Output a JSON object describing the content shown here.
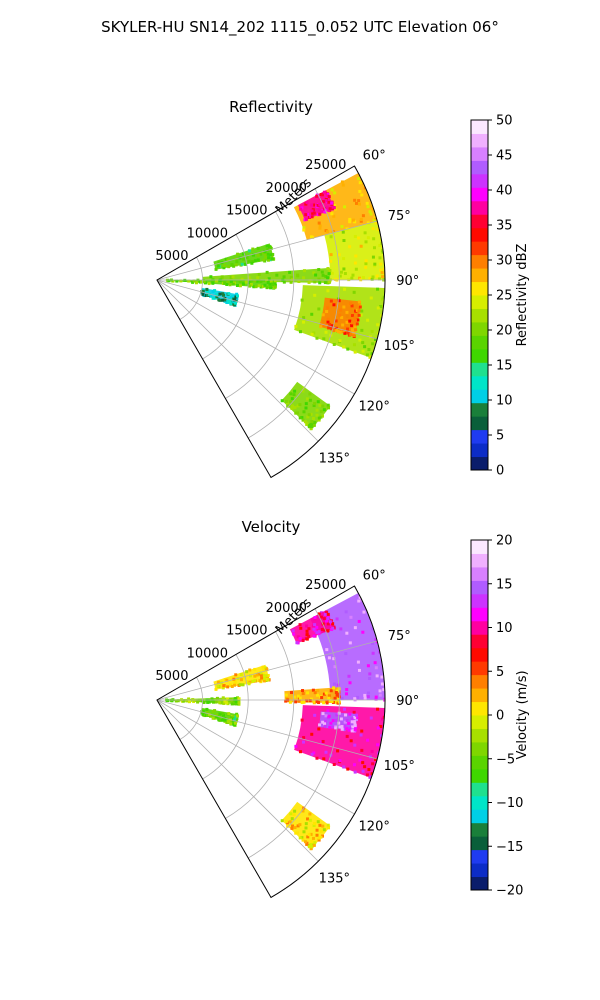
{
  "figure": {
    "suptitle": "SKYLER-HU  SN14_202  1115_0.052 UTC Elevation 06°"
  },
  "chart_data": [
    {
      "type": "heatmap",
      "subtype": "polar-sector-ppi",
      "title": "Reflectivity",
      "radial_label": "Meters",
      "radial_ticks": [
        "5000",
        "10000",
        "15000",
        "20000",
        "25000"
      ],
      "radial_tick_values": [
        5000,
        10000,
        15000,
        20000,
        25000
      ],
      "r_max": 25000,
      "angle_ticks": [
        "60°",
        "75°",
        "90°",
        "105°",
        "120°",
        "135°"
      ],
      "angle_tick_values": [
        60,
        75,
        90,
        105,
        120,
        135
      ],
      "theta_range": [
        60,
        150
      ],
      "grid": true,
      "colorbar": {
        "label": "Reflectivity dBZ",
        "ticks": [
          "0",
          "5",
          "10",
          "15",
          "20",
          "25",
          "30",
          "35",
          "40",
          "45",
          "50"
        ],
        "range": [
          0,
          50
        ],
        "colors": [
          "#0a1d6b",
          "#0c2cc7",
          "#1f3bf0",
          "#0a5f3a",
          "#1a7f3a",
          "#00cfe6",
          "#00e5c8",
          "#1fe08f",
          "#3fd700",
          "#5ad400",
          "#7fd600",
          "#a8e000",
          "#d6ee00",
          "#ffe600",
          "#ffb000",
          "#ff7f00",
          "#ff3a00",
          "#ff0a00",
          "#ff0033",
          "#ff00a0",
          "#ff00ff",
          "#cc33ff",
          "#b05cff",
          "#d880ff",
          "#f0b0ff",
          "#fbe8ff"
        ]
      },
      "echo_regions": [
        {
          "theta_start": 62,
          "theta_end": 75,
          "r_start": 17000,
          "r_end": 25000,
          "dbz": 27
        },
        {
          "theta_start": 62,
          "theta_end": 68,
          "r_start": 17500,
          "r_end": 21000,
          "dbz": 37
        },
        {
          "theta_start": 75,
          "theta_end": 90,
          "r_start": 19000,
          "r_end": 25000,
          "dbz": 24
        },
        {
          "theta_start": 86,
          "theta_end": 91,
          "r_start": 5000,
          "r_end": 19000,
          "dbz": 20
        },
        {
          "theta_start": 90,
          "theta_end": 94,
          "r_start": 1000,
          "r_end": 13000,
          "dbz": 19
        },
        {
          "theta_start": 92,
          "theta_end": 110,
          "r_start": 16000,
          "r_end": 25000,
          "dbz": 22
        },
        {
          "theta_start": 96,
          "theta_end": 106,
          "r_start": 18500,
          "r_end": 22500,
          "dbz": 30
        },
        {
          "theta_start": 72,
          "theta_end": 80,
          "r_start": 6500,
          "r_end": 13000,
          "dbz": 18
        },
        {
          "theta_start": 100,
          "theta_end": 108,
          "r_start": 5000,
          "r_end": 9000,
          "dbz": 10
        },
        {
          "theta_start": 126,
          "theta_end": 134,
          "r_start": 19000,
          "r_end": 23500,
          "dbz": 20
        }
      ]
    },
    {
      "type": "heatmap",
      "subtype": "polar-sector-ppi",
      "title": "Velocity",
      "radial_label": "Meters",
      "radial_ticks": [
        "5000",
        "10000",
        "15000",
        "20000",
        "25000"
      ],
      "radial_tick_values": [
        5000,
        10000,
        15000,
        20000,
        25000
      ],
      "r_max": 25000,
      "angle_ticks": [
        "60°",
        "75°",
        "90°",
        "105°",
        "120°",
        "135°"
      ],
      "angle_tick_values": [
        60,
        75,
        90,
        105,
        120,
        135
      ],
      "theta_range": [
        60,
        150
      ],
      "grid": true,
      "colorbar": {
        "label": "Velocity (m/s)",
        "ticks": [
          "−20",
          "−15",
          "−10",
          "−5",
          "0",
          "5",
          "10",
          "15",
          "20"
        ],
        "range": [
          -20,
          20
        ],
        "colors": [
          "#0a1d6b",
          "#0c2cc7",
          "#1f3bf0",
          "#0a5f3a",
          "#1a7f3a",
          "#00cfe6",
          "#00e5c8",
          "#1fe08f",
          "#3fd700",
          "#5ad400",
          "#7fd600",
          "#a8e000",
          "#d6ee00",
          "#ffe600",
          "#ffb000",
          "#ff7f00",
          "#ff3a00",
          "#ff0a00",
          "#ff0033",
          "#ff00a0",
          "#ff00ff",
          "#cc33ff",
          "#b05cff",
          "#d880ff",
          "#f0b0ff",
          "#fbe8ff"
        ]
      },
      "echo_regions": [
        {
          "theta_start": 62,
          "theta_end": 90,
          "r_start": 19000,
          "r_end": 25000,
          "velocity": 15
        },
        {
          "theta_start": 62,
          "theta_end": 68,
          "r_start": 16500,
          "r_end": 21000,
          "velocity": 10
        },
        {
          "theta_start": 86,
          "theta_end": 91,
          "r_start": 14000,
          "r_end": 20000,
          "velocity": 3
        },
        {
          "theta_start": 88,
          "theta_end": 93,
          "r_start": 1000,
          "r_end": 9000,
          "velocity": -4
        },
        {
          "theta_start": 72,
          "theta_end": 80,
          "r_start": 6500,
          "r_end": 12500,
          "velocity": 1
        },
        {
          "theta_start": 92,
          "theta_end": 110,
          "r_start": 16000,
          "r_end": 25000,
          "velocity": 10
        },
        {
          "theta_start": 94,
          "theta_end": 99,
          "r_start": 18000,
          "r_end": 22000,
          "velocity": 15
        },
        {
          "theta_start": 100,
          "theta_end": 108,
          "r_start": 5000,
          "r_end": 9000,
          "velocity": -5
        },
        {
          "theta_start": 126,
          "theta_end": 134,
          "r_start": 19000,
          "r_end": 23500,
          "velocity": 1
        }
      ]
    }
  ]
}
